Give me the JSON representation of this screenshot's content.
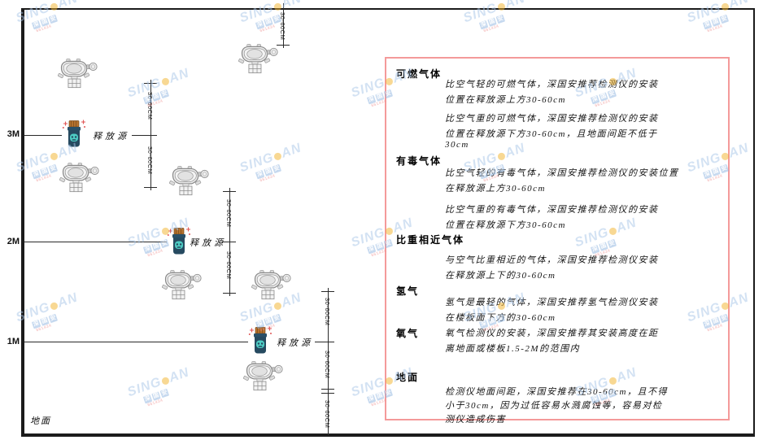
{
  "diagram": {
    "axis_labels": [
      "3M",
      "2M",
      "1M"
    ],
    "ground_label": "地面",
    "release_source_label": "释放源",
    "dim_label": "30-60CM"
  },
  "panel": {
    "border_color": "#f49a9a",
    "sections": [
      {
        "heading": "可燃气体",
        "paragraphs": [
          {
            "lines": [
              "比空气轻的可燃气体，深国安推荐检测仪的安装",
              "位置在释放源上方30-60cm"
            ]
          },
          {
            "lines": [
              "比空气重的可燃气体，深国安推荐检测仪的安装",
              "位置在释放源下方30-60cm，且地面间距不低于",
              "30cm"
            ]
          }
        ]
      },
      {
        "heading": "有毒气体",
        "paragraphs": [
          {
            "lines": [
              "比空气轻的有毒气体，深国安推荐检测仪的安装位置",
              "在释放源上方30-60cm"
            ]
          },
          {
            "lines": [
              "比空气重的有毒气体，深国安推荐检测仪的安装",
              "位置在释放源下方30-60cm"
            ]
          }
        ]
      },
      {
        "heading": "比重相近气体",
        "paragraphs": [
          {
            "lines": [
              "与空气比重相近的气体，深国安推荐检测仪安装",
              "在释放源上下的30-60cm"
            ]
          }
        ]
      },
      {
        "heading": "氢气",
        "paragraphs": [
          {
            "lines": [
              "氢气是最轻的气体，深国安推荐氢气检测仪安装",
              "在楼板面下方的30-60cm"
            ]
          }
        ]
      },
      {
        "heading": "氧气",
        "paragraphs": [
          {
            "lines": [
              "氧气检测仪的安装，深国安推荐其安装高度在距",
              "离地面或楼板1.5-2M的范围内"
            ]
          }
        ]
      },
      {
        "heading": "地面",
        "paragraphs": [
          {
            "lines": [
              "检测仪地面间距，深国安推荐在30-60cm，且不得",
              "小于30cm，因为过低容易水溅腐蚀等，容易对检",
              "测仪造成伤害"
            ]
          }
        ]
      }
    ]
  },
  "watermark": {
    "brand_left": "SING",
    "brand_right": "AN",
    "cn": "深国安",
    "contact": "661434",
    "brand_color": "#a9c6e8",
    "dot_color": "#f3b32a",
    "contact_color": "#ef8d8d"
  },
  "colors": {
    "line": "#1b1b1b",
    "panel_border": "#f49a9a",
    "source_body": "#264a60",
    "source_face": "#4ecdc4",
    "source_lid": "#b5722e",
    "spark": "#e05555"
  }
}
